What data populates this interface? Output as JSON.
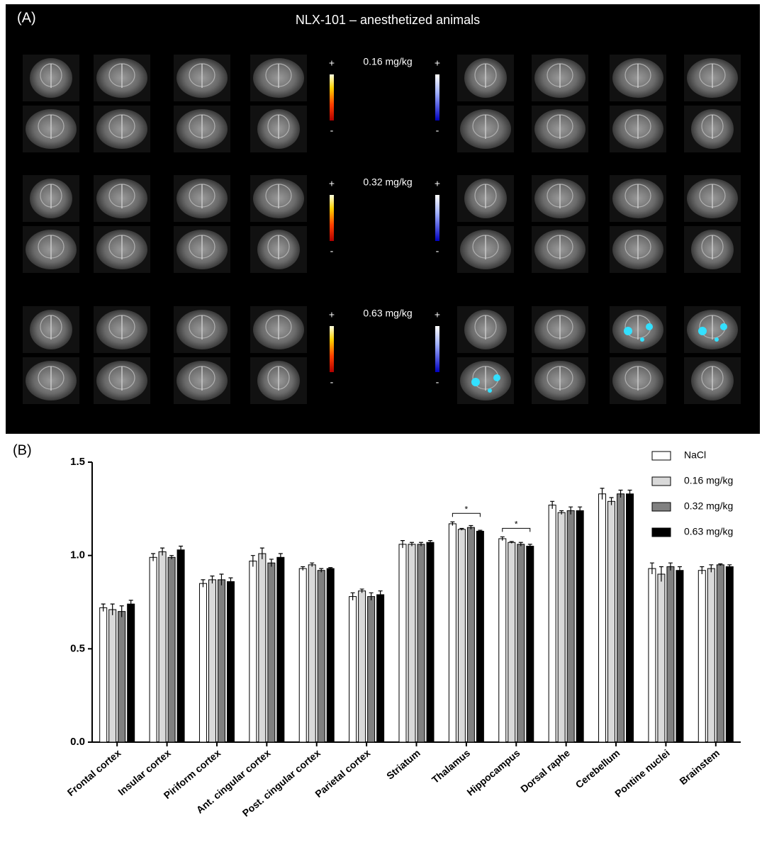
{
  "panel_a": {
    "label": "(A)",
    "title": "NLX-101 – anesthetized animals",
    "doses": [
      "0.16 mg/kg",
      "0.32 mg/kg",
      "0.63 mg/kg"
    ],
    "scale_plus": "+",
    "scale_minus": "-"
  },
  "chart_data": {
    "type": "bar",
    "panel_label": "(B)",
    "categories": [
      "Frontal cortex",
      "Insular cortex",
      "Piriform cortex",
      "Ant. cingular cortex",
      "Post. cingular cortex",
      "Parietal cortex",
      "Striatum",
      "Thalamus",
      "Hippocampus",
      "Dorsal raphe",
      "Cerebellum",
      "Pontine nuclei",
      "Brainstem"
    ],
    "series": [
      {
        "name": "NaCl",
        "color": "#ffffff",
        "values": [
          0.72,
          0.99,
          0.85,
          0.97,
          0.93,
          0.78,
          1.06,
          1.17,
          1.09,
          1.27,
          1.33,
          0.93,
          0.92
        ],
        "errors": [
          0.02,
          0.02,
          0.02,
          0.03,
          0.01,
          0.02,
          0.02,
          0.01,
          0.01,
          0.02,
          0.03,
          0.03,
          0.02
        ]
      },
      {
        "name": "0.16 mg/kg",
        "color": "#d9d9d9",
        "values": [
          0.71,
          1.02,
          0.87,
          1.01,
          0.95,
          0.81,
          1.06,
          1.14,
          1.07,
          1.23,
          1.29,
          0.9,
          0.93
        ],
        "errors": [
          0.03,
          0.02,
          0.02,
          0.03,
          0.01,
          0.01,
          0.01,
          0.005,
          0.005,
          0.01,
          0.02,
          0.04,
          0.02
        ]
      },
      {
        "name": "0.32 mg/kg",
        "color": "#808080",
        "values": [
          0.7,
          0.99,
          0.87,
          0.96,
          0.92,
          0.78,
          1.06,
          1.15,
          1.06,
          1.24,
          1.33,
          0.94,
          0.95
        ],
        "errors": [
          0.03,
          0.01,
          0.03,
          0.02,
          0.01,
          0.02,
          0.01,
          0.01,
          0.01,
          0.02,
          0.02,
          0.02,
          0.005
        ]
      },
      {
        "name": "0.63 mg/kg",
        "color": "#000000",
        "values": [
          0.74,
          1.03,
          0.86,
          0.99,
          0.93,
          0.79,
          1.07,
          1.13,
          1.05,
          1.24,
          1.33,
          0.92,
          0.94
        ],
        "errors": [
          0.02,
          0.02,
          0.02,
          0.02,
          0.005,
          0.02,
          0.01,
          0.005,
          0.01,
          0.02,
          0.02,
          0.02,
          0.01
        ]
      }
    ],
    "annotations": [
      "*",
      "*"
    ],
    "ylim": [
      0,
      1.5
    ],
    "yticks": [
      {
        "value": 0,
        "label": "0.0"
      },
      0.5,
      {
        "value": 1,
        "label": "1.0"
      },
      1.5
    ],
    "legend": "top-right"
  }
}
